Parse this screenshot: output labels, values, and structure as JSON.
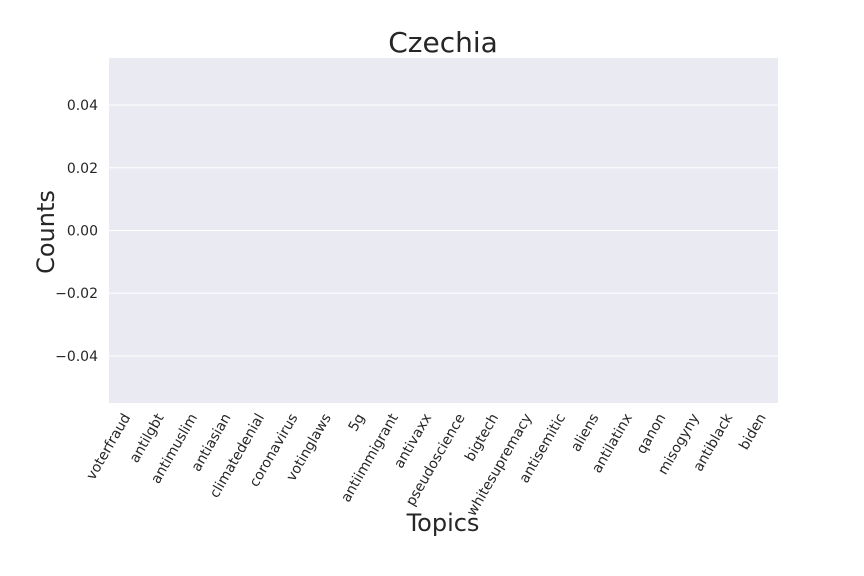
{
  "chart_data": {
    "type": "bar",
    "title": "Czechia",
    "xlabel": "Topics",
    "ylabel": "Counts",
    "categories": [
      "voterfraud",
      "antilgbt",
      "antimuslim",
      "antiasian",
      "climatedenial",
      "coronavirus",
      "votinglaws",
      "5g",
      "antiimmigrant",
      "antivaxx",
      "pseudoscience",
      "bigtech",
      "whitesupremacy",
      "antisemitic",
      "aliens",
      "antilatinx",
      "qanon",
      "misogyny",
      "antiblack",
      "biden"
    ],
    "values": [
      0,
      0,
      0,
      0,
      0,
      0,
      0,
      0,
      0,
      0,
      0,
      0,
      0,
      0,
      0,
      0,
      0,
      0,
      0,
      0
    ],
    "ylim": [
      -0.055,
      0.055
    ],
    "yticks": [
      0.04,
      0.02,
      0.0,
      -0.02,
      -0.04
    ],
    "ytick_labels": [
      "0.04",
      "0.02",
      "0.00",
      "−0.02",
      "−0.04"
    ],
    "grid": true,
    "colors": {
      "background": "#eaeaf2",
      "grid": "#ffffff",
      "text": "#262626"
    }
  }
}
